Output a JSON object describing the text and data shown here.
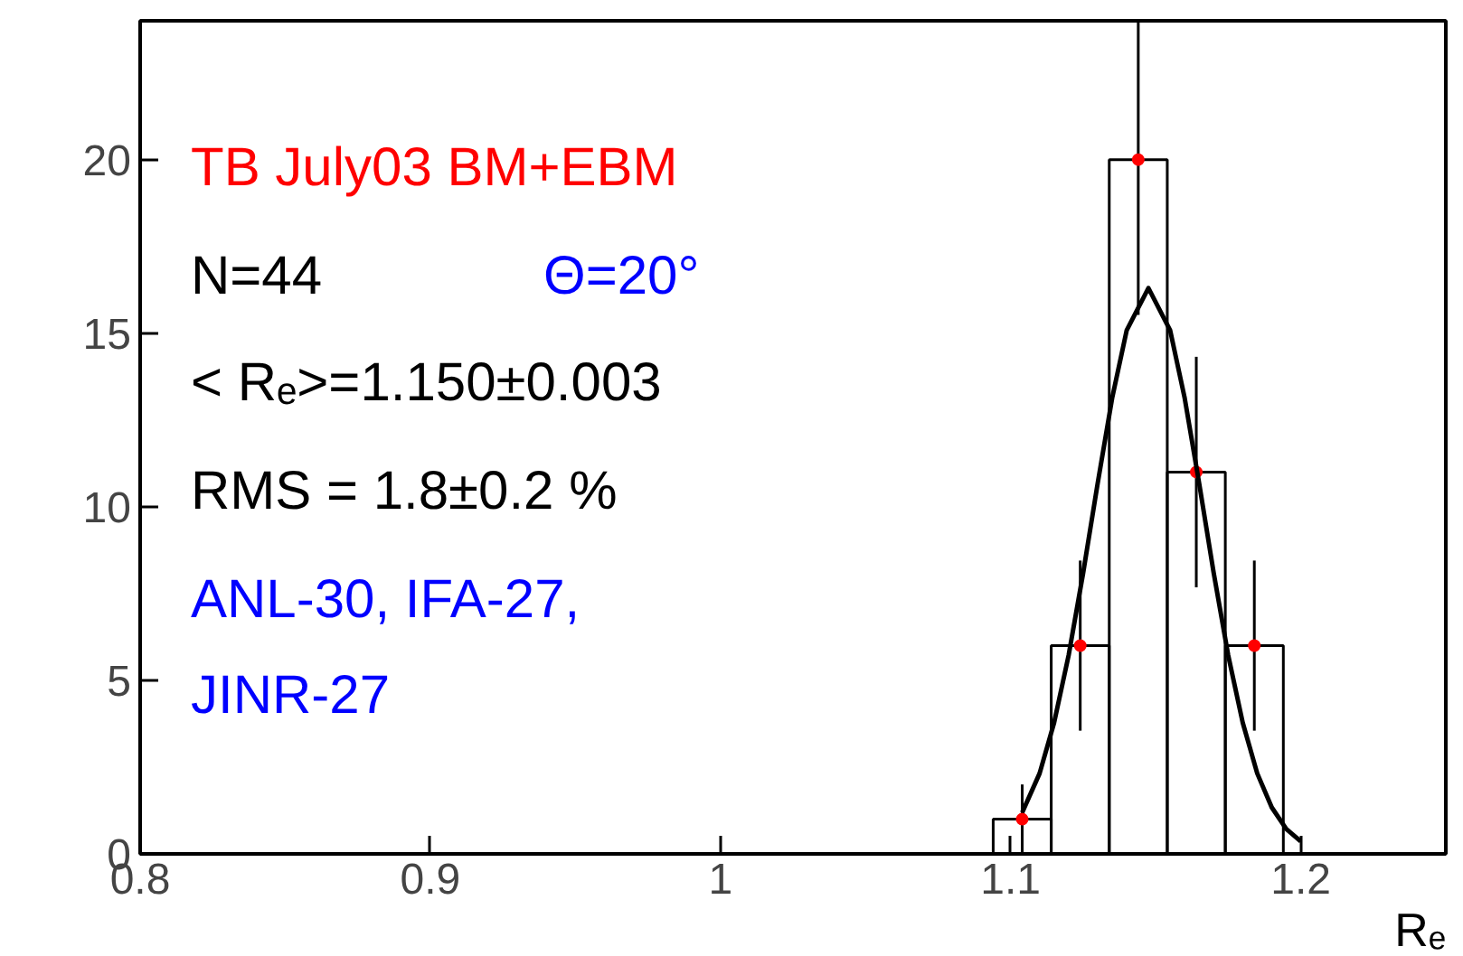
{
  "chart_data": {
    "type": "histogram",
    "xlabel": "Rₑ",
    "bins": [
      1.094,
      1.114,
      1.134,
      1.154,
      1.174,
      1.194
    ],
    "series": [
      {
        "type": "histogram",
        "color": "#000000",
        "values": [
          1,
          6,
          20,
          11,
          6
        ]
      },
      {
        "type": "scatter",
        "color": "#ff0000",
        "marker": "circle",
        "x": [
          1.104,
          1.124,
          1.144,
          1.164,
          1.184
        ],
        "values": [
          1,
          6,
          20,
          11,
          6
        ],
        "errors": [
          1,
          2.45,
          4.47,
          3.32,
          2.45
        ]
      },
      {
        "type": "line",
        "color": "#000000",
        "marker": "none",
        "x": [
          1.104,
          1.11,
          1.115,
          1.12,
          1.125,
          1.13,
          1.135,
          1.14,
          1.1475,
          1.155,
          1.16,
          1.165,
          1.17,
          1.175,
          1.18,
          1.185,
          1.19,
          1.195,
          1.2
        ],
        "values": [
          1.19,
          2.32,
          3.78,
          5.72,
          8.09,
          10.67,
          13.13,
          15.08,
          16.3,
          15.08,
          13.13,
          10.67,
          8.09,
          5.72,
          3.78,
          2.32,
          1.34,
          0.72,
          0.36
        ]
      }
    ],
    "xlim": [
      0.8,
      1.25
    ],
    "xticks": [
      0.8,
      0.9,
      1,
      1.1,
      1.2
    ],
    "ylim": [
      0,
      24
    ],
    "yticks": [
      0,
      5,
      10,
      15,
      20
    ],
    "grid": false,
    "line_style": "solid",
    "annotations": [
      "TB July03  BM+EBM",
      "N=44",
      "Θ=20°",
      "< Rₑ>=1.150±0.003",
      "RMS = 1.8±0.2 %",
      "ANL-30, IFA-27,",
      "JINR-27"
    ]
  }
}
